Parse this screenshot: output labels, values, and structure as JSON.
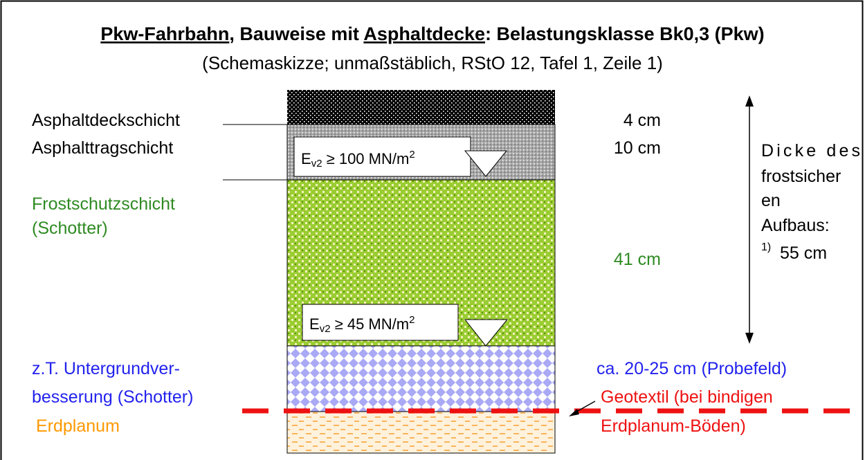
{
  "title": [
    "Pkw-Fahrbahn",
    ", Bauweise mit ",
    "Asphaltdecke",
    ": Belastungsklasse Bk0,3 (Pkw)"
  ],
  "subtitle": "(Schemaskizze; unmaßstäblich, RStO 12, Tafel 1, Zeile 1)",
  "layers": [
    {
      "label": [
        "Asphaltdeckschicht"
      ],
      "thickness": "4 cm"
    },
    {
      "label": [
        "Asphalttragschicht"
      ],
      "thickness": "10 cm"
    },
    {
      "label": [
        "Frostschutzschicht",
        "(Schotter)"
      ],
      "thickness": "41 cm"
    },
    {
      "label": [
        "z.T. Untergrundver-",
        "besserung (Schotter)"
      ],
      "thickness": "ca. 20-25 cm (Probefeld)"
    },
    {
      "label": [
        "Erdplanum"
      ]
    }
  ],
  "geotextile": [
    "Geotextil (bei bindigen",
    "Erdplanum-Böden)"
  ],
  "bearing": [
    {
      "symbol": "E",
      "sub": "v2",
      "text": " ≥ 100 MN/m",
      "sup": "2"
    },
    {
      "symbol": "E",
      "sub": "v2",
      "text": " ≥ 45 MN/m",
      "sup": "2"
    }
  ],
  "total": {
    "lines": [
      "Dicke des",
      "frostsicher",
      "en",
      "Aufbaus:"
    ],
    "footnote": "1)",
    "value": "55 cm"
  }
}
